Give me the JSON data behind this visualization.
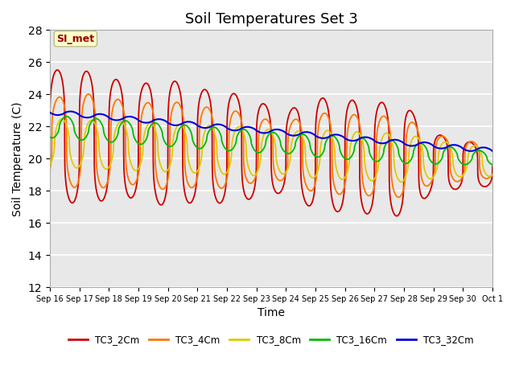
{
  "title": "Soil Temperatures Set 3",
  "xlabel": "Time",
  "ylabel": "Soil Temperature (C)",
  "ylim": [
    12,
    28
  ],
  "yticks": [
    12,
    14,
    16,
    18,
    20,
    22,
    24,
    26,
    28
  ],
  "x_labels": [
    "Sep 16",
    "Sep 17",
    "Sep 18",
    "Sep 19",
    "Sep 20",
    "Sep 21",
    "Sep 22",
    "Sep 23",
    "Sep 24",
    "Sep 25",
    "Sep 26",
    "Sep 27",
    "Sep 28",
    "Sep 29",
    "Sep 30",
    "Oct 1"
  ],
  "colors": {
    "TC3_2Cm": "#cc0000",
    "TC3_4Cm": "#ff7700",
    "TC3_8Cm": "#ddcc00",
    "TC3_16Cm": "#00bb00",
    "TC3_32Cm": "#0000dd"
  },
  "legend_labels": [
    "TC3_2Cm",
    "TC3_4Cm",
    "TC3_8Cm",
    "TC3_16Cm",
    "TC3_32Cm"
  ],
  "bg_color": "#e8e8e8",
  "annotation_text": "SI_met",
  "annotation_color": "#990000",
  "annotation_bg": "#ffffcc",
  "grid_color": "#ffffff",
  "title_fontsize": 13,
  "axis_fontsize": 10
}
